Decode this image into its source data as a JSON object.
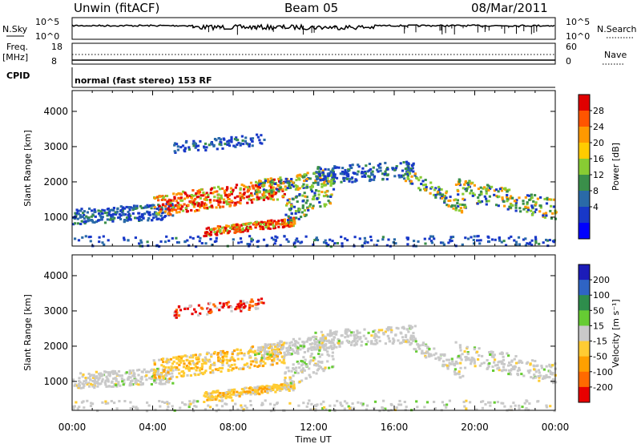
{
  "header": {
    "station": "Unwin (fitACF)",
    "beam": "Beam 05",
    "date": "08/Mar/2011"
  },
  "top_panels": {
    "nsky_label": "N.Sky",
    "nsearch_label": "N.Search",
    "noise_ticks": [
      "10^5",
      "10^0"
    ],
    "freq_label": "Freq.",
    "freq_unit": "[MHz]",
    "freq_ticks": [
      "18",
      "8"
    ],
    "nave_label": "Nave",
    "nave_ticks": [
      "60",
      "0"
    ],
    "cpid_label": "CPID",
    "cpid_value": "normal (fast stereo) 153 RF"
  },
  "chart_data": [
    {
      "type": "heatmap",
      "name": "power",
      "ylabel": "Slant Range [km]",
      "ylim": [
        180,
        4590
      ],
      "yticks": [
        1000,
        2000,
        3000,
        4000
      ],
      "xlim": [
        0,
        24
      ],
      "colorbar": {
        "label": "Power [dB]",
        "ticks": [
          "28",
          "24",
          "20",
          "16",
          "12",
          "8",
          "4"
        ],
        "colors": [
          "#e00000",
          "#ff5500",
          "#ff9900",
          "#ffcc00",
          "#88cc33",
          "#3a8f4a",
          "#2a6aa8",
          "#1838c8",
          "#0000ff"
        ]
      }
    },
    {
      "type": "heatmap",
      "name": "velocity",
      "ylabel": "Slant Range [km]",
      "ylim": [
        180,
        4590
      ],
      "yticks": [
        1000,
        2000,
        3000,
        4000
      ],
      "xlim": [
        0,
        24
      ],
      "colorbar": {
        "label": "Velocity [m s⁻¹]",
        "ticks": [
          "200",
          "100",
          "50",
          "15",
          "-15",
          "-50",
          "-100",
          "-200"
        ],
        "colors": [
          "#1c1cb8",
          "#2f64c4",
          "#2e8d4c",
          "#66cc33",
          "#c9c9c9",
          "#ffcc33",
          "#ffa000",
          "#ff6a00",
          "#e80000"
        ]
      }
    }
  ],
  "x_axis": {
    "label": "Time UT",
    "ticks": [
      "00:00",
      "04:00",
      "08:00",
      "12:00",
      "16:00",
      "20:00",
      "00:00"
    ]
  }
}
